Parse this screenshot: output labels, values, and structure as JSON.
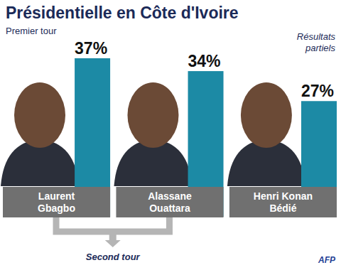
{
  "chart_data": {
    "type": "bar",
    "title": "Présidentielle en Côte d'Ivoire",
    "subtitle": "Premier tour",
    "annotations": [
      "Résultats partiels",
      "Second tour",
      "AFP"
    ],
    "categories": [
      "Laurent Gbagbo",
      "Alassane Ouattara",
      "Henri Konan Bédié"
    ],
    "values": [
      37,
      34,
      27
    ],
    "value_labels": [
      "37%",
      "34%",
      "27%"
    ],
    "color": "#1c8aa5",
    "data_labels": true,
    "tick_labels": false
  }
}
